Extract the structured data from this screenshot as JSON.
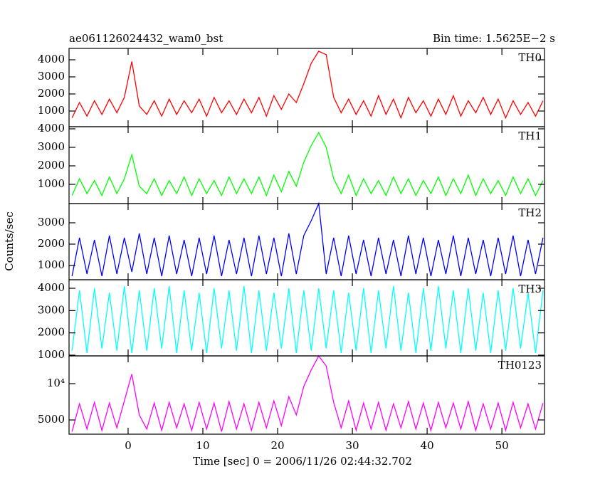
{
  "chart_data": [
    {
      "type": "line",
      "title": "ae061126024432_wam0_bst",
      "subtitle": "Bin time: 1.5625E−2 s",
      "x": [
        -7.5,
        -6.5,
        -5.5,
        -4.5,
        -3.5,
        -2.5,
        -1.5,
        -0.5,
        0.5,
        1.5,
        2.5,
        3.5,
        4.5,
        5.5,
        6.5,
        7.5,
        8.5,
        9.5,
        10.5,
        11.5,
        12.5,
        13.5,
        14.5,
        15.5,
        16.5,
        17.5,
        18.5,
        19.5,
        20.5,
        21.5,
        22.5,
        23.5,
        24.5,
        25.5,
        26.5,
        27.5,
        28.5,
        29.5,
        30.5,
        31.5,
        32.5,
        33.5,
        34.5,
        35.5,
        36.5,
        37.5,
        38.5,
        39.5,
        40.5,
        41.5,
        42.5,
        43.5,
        44.5,
        45.5,
        46.5,
        47.5,
        48.5,
        49.5,
        50.5,
        51.5,
        52.5,
        53.5,
        54.5,
        55.5
      ],
      "series": [
        {
          "name": "TH0",
          "color": "#ff0000",
          "values": [
            600,
            1500,
            700,
            1600,
            800,
            1700,
            900,
            1800,
            3900,
            1300,
            800,
            1600,
            700,
            1700,
            800,
            1600,
            900,
            1700,
            700,
            1800,
            900,
            1600,
            800,
            1700,
            900,
            1800,
            700,
            1900,
            1100,
            2000,
            1500,
            2600,
            3800,
            4500,
            4300,
            1800,
            900,
            1700,
            800,
            1600,
            700,
            1900,
            800,
            1700,
            600,
            1800,
            900,
            1600,
            700,
            1700,
            800,
            1900,
            700,
            1600,
            900,
            1800,
            800,
            1700,
            600,
            1600,
            800,
            1500,
            700,
            1600
          ]
        }
      ],
      "xlim": [
        -7.9,
        55.7
      ],
      "xticks": [
        0,
        10,
        20,
        30,
        40,
        50
      ],
      "ylim": [
        83,
        4667
      ],
      "yticks": [
        1000,
        2000,
        3000,
        4000
      ]
    },
    {
      "type": "line",
      "x": [
        -7.5,
        -6.5,
        -5.5,
        -4.5,
        -3.5,
        -2.5,
        -1.5,
        -0.5,
        0.5,
        1.5,
        2.5,
        3.5,
        4.5,
        5.5,
        6.5,
        7.5,
        8.5,
        9.5,
        10.5,
        11.5,
        12.5,
        13.5,
        14.5,
        15.5,
        16.5,
        17.5,
        18.5,
        19.5,
        20.5,
        21.5,
        22.5,
        23.5,
        24.5,
        25.5,
        26.5,
        27.5,
        28.5,
        29.5,
        30.5,
        31.5,
        32.5,
        33.5,
        34.5,
        35.5,
        36.5,
        37.5,
        38.5,
        39.5,
        40.5,
        41.5,
        42.5,
        43.5,
        44.5,
        45.5,
        46.5,
        47.5,
        48.5,
        49.5,
        50.5,
        51.5,
        52.5,
        53.5,
        54.5,
        55.5
      ],
      "series": [
        {
          "name": "TH1",
          "color": "#00ff00",
          "values": [
            400,
            1300,
            500,
            1200,
            400,
            1400,
            500,
            1300,
            2600,
            900,
            500,
            1300,
            400,
            1200,
            500,
            1400,
            400,
            1300,
            500,
            1200,
            400,
            1400,
            500,
            1300,
            500,
            1400,
            400,
            1500,
            600,
            1700,
            900,
            2200,
            3100,
            3800,
            3000,
            1300,
            500,
            1500,
            400,
            1300,
            500,
            1200,
            400,
            1400,
            500,
            1300,
            400,
            1200,
            500,
            1400,
            400,
            1300,
            500,
            1500,
            400,
            1300,
            500,
            1200,
            400,
            1400,
            500,
            1300,
            400,
            1200
          ]
        }
      ],
      "xlim": [
        -7.9,
        55.7
      ],
      "xticks": [
        0,
        10,
        20,
        30,
        40,
        50
      ],
      "ylim": [
        -38,
        4115
      ],
      "yticks": [
        1000,
        2000,
        3000,
        4000
      ]
    },
    {
      "type": "line",
      "ylabel": "Counts/sec",
      "x": [
        -7.5,
        -6.5,
        -5.5,
        -4.5,
        -3.5,
        -2.5,
        -1.5,
        -0.5,
        0.5,
        1.5,
        2.5,
        3.5,
        4.5,
        5.5,
        6.5,
        7.5,
        8.5,
        9.5,
        10.5,
        11.5,
        12.5,
        13.5,
        14.5,
        15.5,
        16.5,
        17.5,
        18.5,
        19.5,
        20.5,
        21.5,
        22.5,
        23.5,
        24.5,
        25.5,
        26.5,
        27.5,
        28.5,
        29.5,
        30.5,
        31.5,
        32.5,
        33.5,
        34.5,
        35.5,
        36.5,
        37.5,
        38.5,
        39.5,
        40.5,
        41.5,
        42.5,
        43.5,
        44.5,
        45.5,
        46.5,
        47.5,
        48.5,
        49.5,
        50.5,
        51.5,
        52.5,
        53.5,
        54.5,
        55.5
      ],
      "series": [
        {
          "name": "TH2",
          "color": "#0000ff",
          "values": [
            500,
            2300,
            600,
            2200,
            500,
            2400,
            600,
            2300,
            700,
            2500,
            600,
            2300,
            500,
            2400,
            600,
            2200,
            500,
            2300,
            600,
            2400,
            500,
            2200,
            600,
            2300,
            500,
            2400,
            600,
            2300,
            500,
            2500,
            600,
            2400,
            3100,
            3900,
            600,
            2300,
            500,
            2400,
            600,
            2200,
            500,
            2300,
            600,
            2200,
            500,
            2400,
            600,
            2300,
            500,
            2200,
            600,
            2400,
            500,
            2300,
            600,
            2200,
            500,
            2300,
            600,
            2400,
            500,
            2200,
            600,
            2300
          ]
        }
      ],
      "xlim": [
        -7.9,
        55.7
      ],
      "xticks": [
        0,
        10,
        20,
        30,
        40,
        50
      ],
      "ylim": [
        333,
        3900
      ],
      "yticks": [
        1000,
        2000,
        3000
      ]
    },
    {
      "type": "line",
      "x": [
        -7.5,
        -6.5,
        -5.5,
        -4.5,
        -3.5,
        -2.5,
        -1.5,
        -0.5,
        0.5,
        1.5,
        2.5,
        3.5,
        4.5,
        5.5,
        6.5,
        7.5,
        8.5,
        9.5,
        10.5,
        11.5,
        12.5,
        13.5,
        14.5,
        15.5,
        16.5,
        17.5,
        18.5,
        19.5,
        20.5,
        21.5,
        22.5,
        23.5,
        24.5,
        25.5,
        26.5,
        27.5,
        28.5,
        29.5,
        30.5,
        31.5,
        32.5,
        33.5,
        34.5,
        35.5,
        36.5,
        37.5,
        38.5,
        39.5,
        40.5,
        41.5,
        42.5,
        43.5,
        44.5,
        45.5,
        46.5,
        47.5,
        48.5,
        49.5,
        50.5,
        51.5,
        52.5,
        53.5,
        54.5,
        55.5
      ],
      "series": [
        {
          "name": "TH3",
          "color": "#00ffff",
          "values": [
            1200,
            3900,
            1100,
            4000,
            1300,
            3800,
            1200,
            4100,
            1100,
            3900,
            1200,
            4000,
            1300,
            4100,
            1100,
            3900,
            1200,
            3800,
            1100,
            4000,
            1300,
            3900,
            1200,
            4100,
            1100,
            3900,
            1200,
            3800,
            1300,
            4000,
            1100,
            3900,
            1200,
            4000,
            1300,
            3900,
            1100,
            3800,
            1200,
            4000,
            1100,
            3900,
            1300,
            4100,
            1200,
            3800,
            1100,
            4000,
            1200,
            4100,
            1300,
            3900,
            1100,
            4000,
            1200,
            3800,
            1100,
            3900,
            1200,
            4000,
            1300,
            3800,
            1100,
            3900
          ]
        }
      ],
      "xlim": [
        -7.9,
        55.7
      ],
      "xticks": [
        0,
        10,
        20,
        30,
        40,
        50
      ],
      "ylim": [
        968,
        4383
      ],
      "yticks": [
        1000,
        2000,
        3000,
        4000
      ]
    },
    {
      "type": "line",
      "xlabel": "Time [sec] 0 = 2006/11/26 02:44:32.702",
      "yscale": "log",
      "x": [
        -7.5,
        -6.5,
        -5.5,
        -4.5,
        -3.5,
        -2.5,
        -1.5,
        -0.5,
        0.5,
        1.5,
        2.5,
        3.5,
        4.5,
        5.5,
        6.5,
        7.5,
        8.5,
        9.5,
        10.5,
        11.5,
        12.5,
        13.5,
        14.5,
        15.5,
        16.5,
        17.5,
        18.5,
        19.5,
        20.5,
        21.5,
        22.5,
        23.5,
        24.5,
        25.5,
        26.5,
        27.5,
        28.5,
        29.5,
        30.5,
        31.5,
        32.5,
        33.5,
        34.5,
        35.5,
        36.5,
        37.5,
        38.5,
        39.5,
        40.5,
        41.5,
        42.5,
        43.5,
        44.5,
        45.5,
        46.5,
        47.5,
        48.5,
        49.5,
        50.5,
        51.5,
        52.5,
        53.5,
        54.5,
        55.5
      ],
      "series": [
        {
          "name": "TH0123",
          "color": "#ff00ff",
          "values": [
            4000,
            6800,
            4200,
            7000,
            4100,
            6900,
            4300,
            7200,
            12000,
            5500,
            4200,
            6900,
            4100,
            7000,
            4300,
            6800,
            4100,
            7000,
            4200,
            6900,
            4000,
            7100,
            4200,
            6800,
            4100,
            7000,
            4300,
            7200,
            4500,
            7800,
            5500,
            9500,
            13000,
            17000,
            14000,
            7000,
            4300,
            7200,
            4100,
            6900,
            4200,
            7000,
            4100,
            6800,
            4300,
            7100,
            4200,
            6900,
            4100,
            7000,
            4300,
            6900,
            4200,
            7100,
            4100,
            6800,
            4200,
            6900,
            4100,
            7000,
            4300,
            6800,
            4200,
            6900
          ]
        }
      ],
      "xlim": [
        -7.9,
        55.7
      ],
      "xticks": [
        0,
        10,
        20,
        30,
        40,
        50
      ],
      "ylim": [
        3810,
        17000
      ],
      "yticks": [
        5000,
        {
          "value": 10000,
          "label": "10⁴"
        }
      ]
    }
  ]
}
